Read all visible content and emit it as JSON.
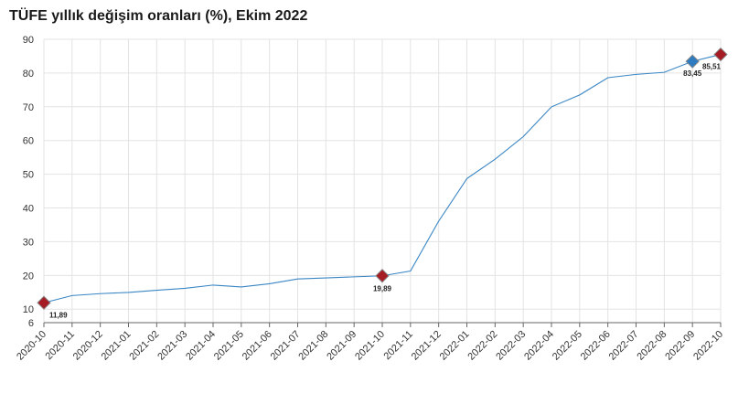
{
  "chart_data": {
    "type": "line",
    "title": "TÜFE yıllık değişim oranları (%), Ekim 2022",
    "xlabel": "",
    "ylabel": "",
    "ylim": [
      6,
      90
    ],
    "yticks": [
      6,
      10,
      20,
      30,
      40,
      50,
      60,
      70,
      80,
      90
    ],
    "grid": true,
    "x": [
      "2020-10",
      "2020-11",
      "2020-12",
      "2021-01",
      "2021-02",
      "2021-03",
      "2021-04",
      "2021-05",
      "2021-06",
      "2021-07",
      "2021-08",
      "2021-09",
      "2021-10",
      "2021-11",
      "2021-12",
      "2022-01",
      "2022-02",
      "2022-03",
      "2022-04",
      "2022-05",
      "2022-06",
      "2022-07",
      "2022-08",
      "2022-09",
      "2022-10"
    ],
    "series": [
      {
        "values": [
          11.89,
          14.03,
          14.6,
          14.97,
          15.61,
          16.19,
          17.14,
          16.59,
          17.53,
          18.95,
          19.25,
          19.58,
          19.89,
          21.31,
          36.08,
          48.69,
          54.44,
          61.14,
          69.97,
          73.5,
          78.62,
          79.6,
          80.21,
          83.45,
          85.51
        ]
      }
    ],
    "highlighted_points": [
      {
        "x": "2020-10",
        "value": 11.89,
        "label": "11,89",
        "color": "#a51c24"
      },
      {
        "x": "2021-10",
        "value": 19.89,
        "label": "19,89",
        "color": "#a51c24"
      },
      {
        "x": "2022-09",
        "value": 83.45,
        "label": "83,45",
        "color": "#2e7bbf"
      },
      {
        "x": "2022-10",
        "value": 85.51,
        "label": "85,51",
        "color": "#a51c24"
      }
    ],
    "colors": {
      "line": "#3a86c4",
      "grid": "#e3e3e3",
      "axis": "#666666"
    }
  }
}
